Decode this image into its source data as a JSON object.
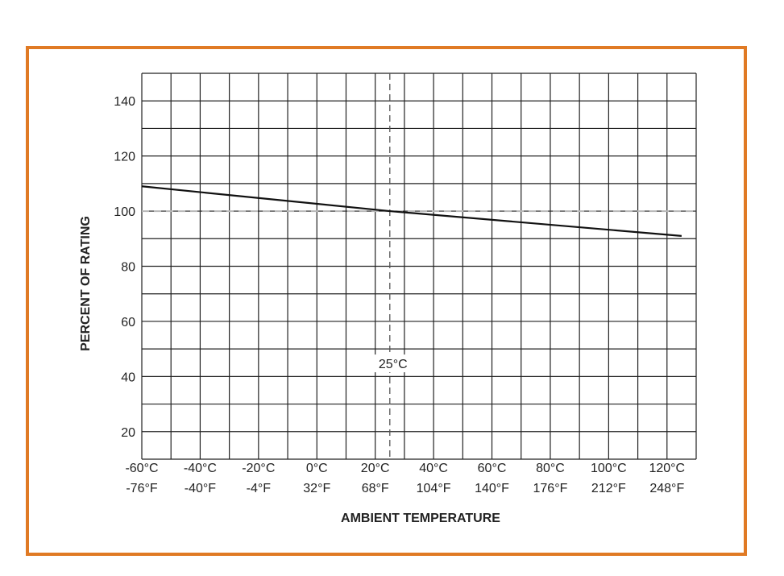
{
  "colors": {
    "frame_border": "#e07a24",
    "grid": "#222222",
    "curve": "#111111",
    "reference_line": "#b8b8b8"
  },
  "chart_data": {
    "type": "line",
    "xlabel": "AMBIENT TEMPERATURE",
    "ylabel": "PERCENT OF RATING",
    "grid": true,
    "xlim": [
      -60,
      130
    ],
    "ylim": [
      10,
      150
    ],
    "y_ticks": [
      20,
      40,
      60,
      80,
      100,
      120,
      140
    ],
    "x_ticks": [
      {
        "value": -60,
        "label_c": "-60°C",
        "label_f": "-76°F"
      },
      {
        "value": -40,
        "label_c": "-40°C",
        "label_f": "-40°F"
      },
      {
        "value": -20,
        "label_c": "-20°C",
        "label_f": "-4°F"
      },
      {
        "value": 0,
        "label_c": "0°C",
        "label_f": "32°F"
      },
      {
        "value": 20,
        "label_c": "20°C",
        "label_f": "68°F"
      },
      {
        "value": 40,
        "label_c": "40°C",
        "label_f": "104°F"
      },
      {
        "value": 60,
        "label_c": "60°C",
        "label_f": "140°F"
      },
      {
        "value": 80,
        "label_c": "80°C",
        "label_f": "176°F"
      },
      {
        "value": 100,
        "label_c": "100°C",
        "label_f": "212°F"
      },
      {
        "value": 120,
        "label_c": "120°C",
        "label_f": "248°F"
      }
    ],
    "series": [
      {
        "x": [
          -60,
          25,
          125
        ],
        "y": [
          109,
          100,
          91
        ]
      }
    ],
    "reference_lines": {
      "horizontal_y": 100,
      "vertical_x": 25
    },
    "annotations": [
      {
        "text": "25°C",
        "x": 25,
        "y": 43
      }
    ]
  }
}
